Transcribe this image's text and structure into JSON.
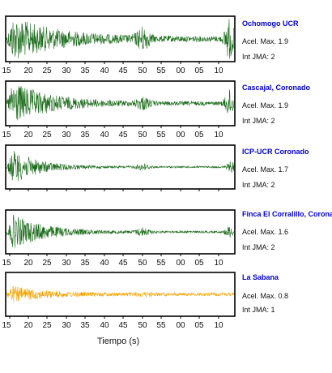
{
  "chart_data": {
    "type": "line",
    "xlabel": "Tiempo (s)",
    "x_ticks": [
      "15",
      "20",
      "25",
      "30",
      "35",
      "40",
      "45",
      "50",
      "55",
      "00",
      "05",
      "10"
    ],
    "grid": false,
    "series": [
      {
        "name": "Ochomogo UCR",
        "pga_label": "Acel. Max. 1.9",
        "jma_label": "Int JMA: 2",
        "color": "#1a6b1a",
        "peak": 1.9
      },
      {
        "name": "Cascajal, Coronado",
        "pga_label": "Acel. Max. 1.9",
        "jma_label": "Int JMA: 2",
        "color": "#1a6b1a",
        "peak": 1.9
      },
      {
        "name": "ICP-UCR Coronado",
        "pga_label": "Acel. Max. 1.7",
        "jma_label": "Int JMA: 2",
        "color": "#1a6b1a",
        "peak": 1.7
      },
      {
        "name": "Finca El Corralillo, Coronado",
        "pga_label": "Acel. Max. 1.6",
        "jma_label": "Int JMA: 2",
        "color": "#1a6b1a",
        "peak": 1.6
      },
      {
        "name": "La Sabana",
        "pga_label": "Acel. Max. 0.8",
        "jma_label": "Int JMA: 1",
        "color": "#f5a300",
        "peak": 0.8
      }
    ]
  }
}
